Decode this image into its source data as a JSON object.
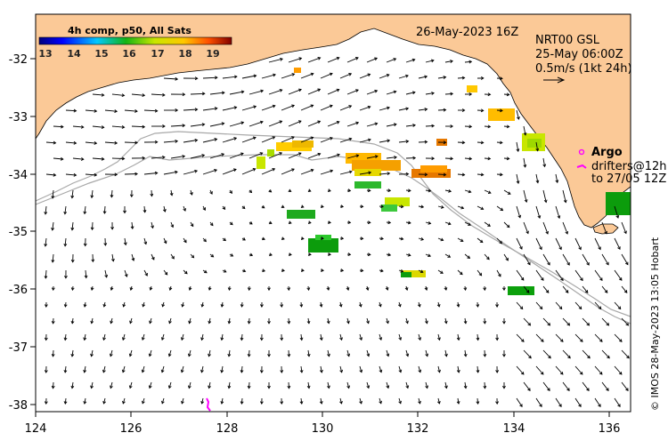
{
  "map": {
    "datetime": "26-May-2023 16Z",
    "x_ticks": [
      "124",
      "126",
      "128",
      "130",
      "132",
      "134",
      "136"
    ],
    "y_ticks": [
      "-32",
      "-33",
      "-34",
      "-35",
      "-36",
      "-37",
      "-38"
    ],
    "colors": {
      "land": "#fbc997",
      "ocean": "#ffffff",
      "isobath": "#a8a8a8",
      "arrow": "#000000",
      "argo": "#ff00ff"
    }
  },
  "colorbar": {
    "title": "4h comp, p50, All Sats",
    "labels": [
      "13",
      "14",
      "15",
      "16",
      "17",
      "18",
      "19"
    ]
  },
  "currents": {
    "model": "NRT00 GSL",
    "valid_time": "25-May 06:00Z",
    "scale": "0.5m/s (1kt 24h)"
  },
  "legend": {
    "argo_label": "Argo",
    "drifters_line1": "drifters@12h",
    "drifters_line2": "to 27/05 12Z"
  },
  "credit": "© IMOS 28-May-2023 13:05 Hobart"
}
